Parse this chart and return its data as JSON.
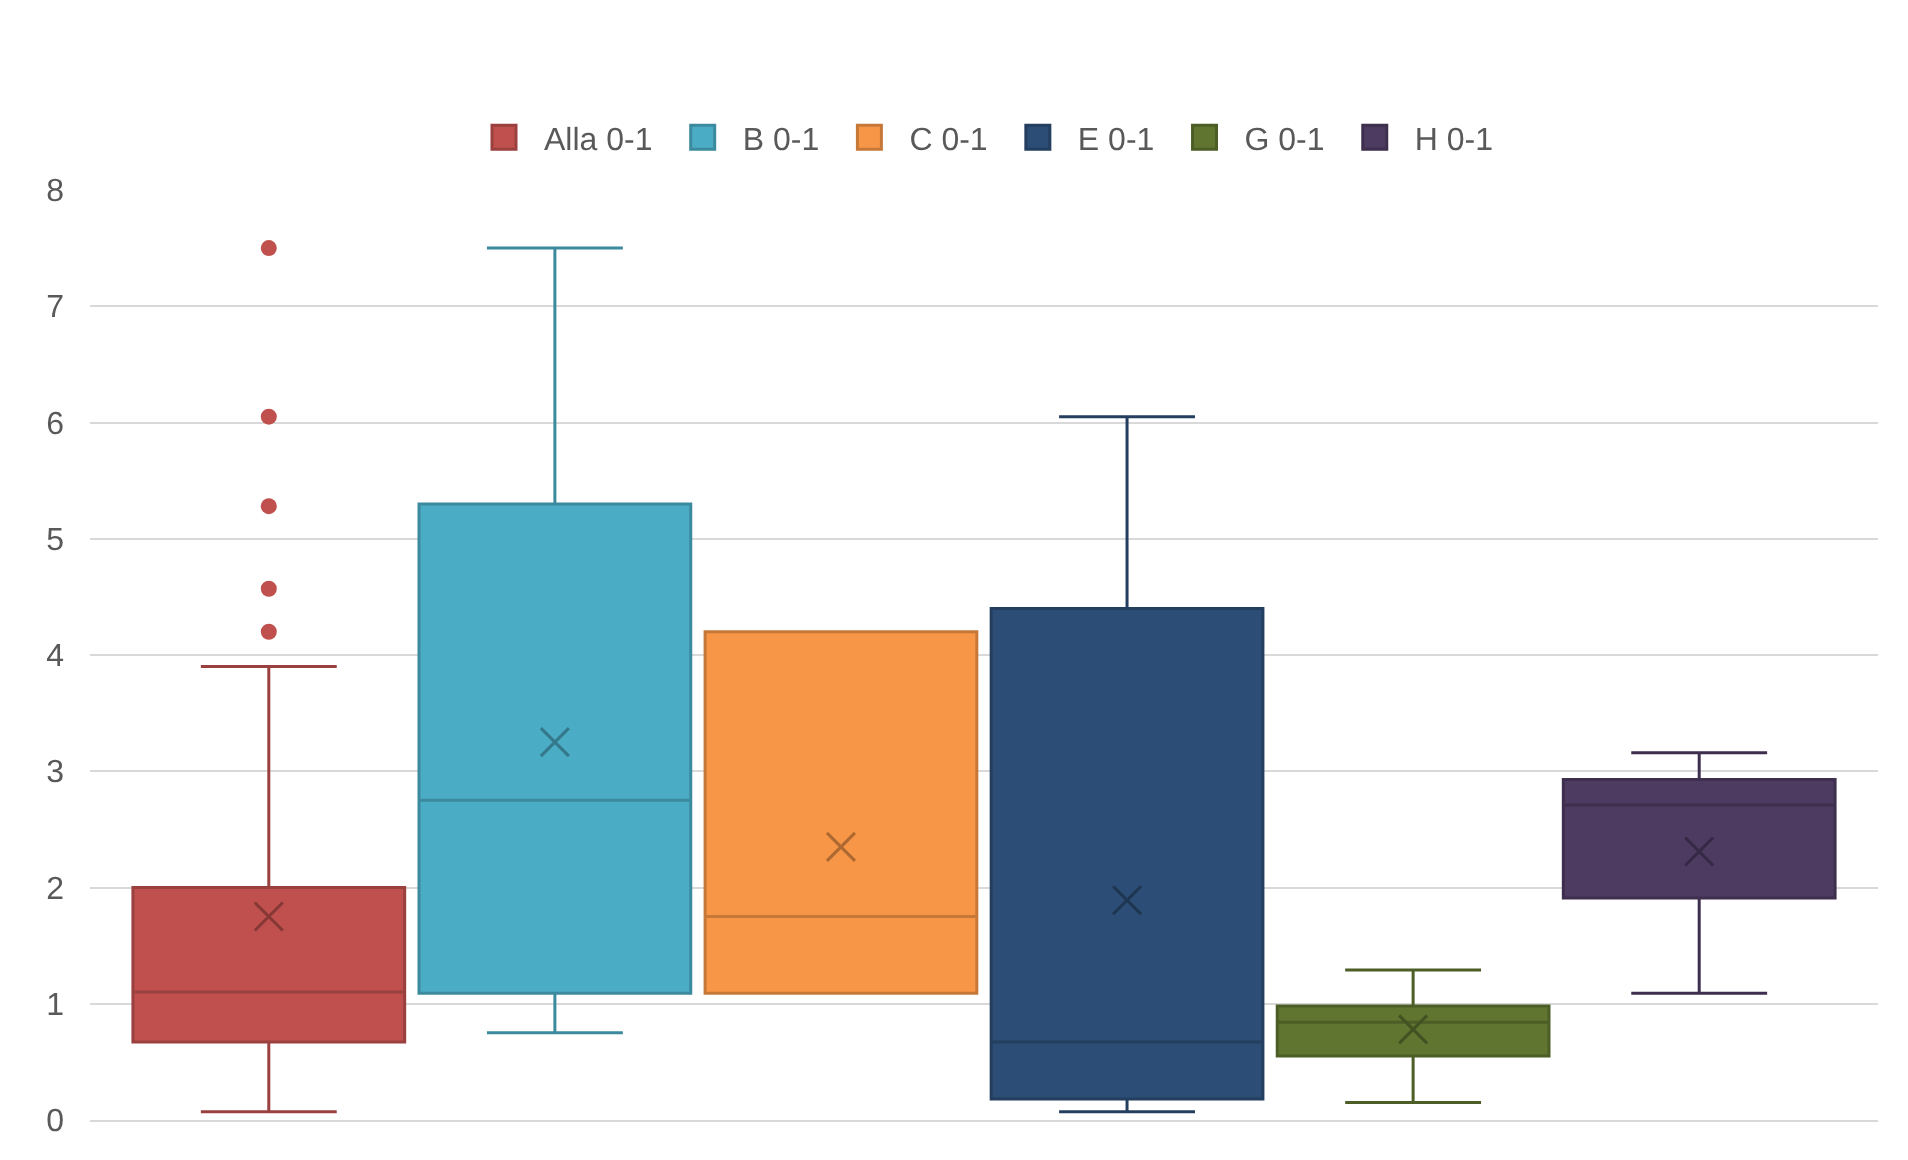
{
  "chart_data": {
    "type": "box",
    "categories": [
      null
    ],
    "ylim": [
      0,
      8
    ],
    "yticks": [
      0,
      1,
      2,
      3,
      4,
      5,
      6,
      7,
      8
    ],
    "grid": "y",
    "legend": "top",
    "marker": "cross",
    "series": [
      {
        "name": "Alla 0-1",
        "color": "#c0504d",
        "boxes": [
          {
            "low": 0.07,
            "q1": 0.67,
            "median": 1.1,
            "q3": 2.0,
            "high": 3.9,
            "mean": 1.75,
            "outliers": [
              4.2,
              4.57,
              5.28,
              6.05,
              7.5
            ]
          }
        ]
      },
      {
        "name": "B 0-1",
        "color": "#4bacc6",
        "boxes": [
          {
            "low": 0.75,
            "q1": 1.09,
            "median": 2.75,
            "q3": 5.3,
            "high": 7.5,
            "mean": 3.25
          }
        ]
      },
      {
        "name": "C 0-1",
        "color": "#f79646",
        "boxes": [
          {
            "low": 1.09,
            "q1": 1.09,
            "median": 1.75,
            "q3": 4.2,
            "high": 4.2,
            "mean": 2.35
          }
        ]
      },
      {
        "name": "E 0-1",
        "color": "#2c4d75",
        "boxes": [
          {
            "low": 0.07,
            "q1": 0.18,
            "median": 0.67,
            "q3": 4.4,
            "high": 6.05,
            "mean": 1.89
          }
        ]
      },
      {
        "name": "G 0-1",
        "color": "#5f7530",
        "boxes": [
          {
            "low": 0.15,
            "q1": 0.55,
            "median": 0.84,
            "q3": 0.98,
            "high": 1.29,
            "mean": 0.78
          }
        ]
      },
      {
        "name": "H 0-1",
        "color": "#4d3b62",
        "boxes": [
          {
            "low": 1.09,
            "q1": 1.91,
            "median": 2.71,
            "q3": 2.93,
            "high": 3.16,
            "mean": 2.31
          }
        ]
      }
    ]
  }
}
